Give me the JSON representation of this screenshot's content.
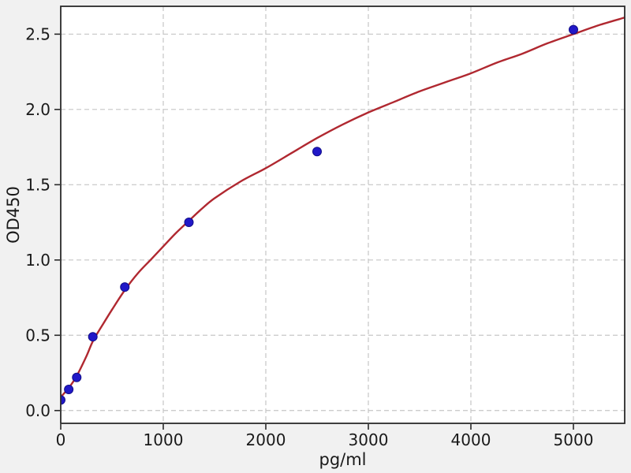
{
  "figure": {
    "background_color": "#f1f1f1",
    "plot_background_color": "#ffffff",
    "spine_color": "#2a2a2a",
    "grid_color": "#c6c6c6",
    "tick_color": "#2a2a2a",
    "label_color": "#1a1a1a"
  },
  "chart_data": {
    "type": "scatter",
    "title": "",
    "xlabel": "pg/ml",
    "ylabel": "OD450",
    "xlim": [
      0,
      5500
    ],
    "ylim": [
      -0.085,
      2.685
    ],
    "grid": true,
    "grid_style": "dashed",
    "legend_position": "none",
    "x_ticks": [
      0,
      1000,
      2000,
      3000,
      4000,
      5000
    ],
    "x_tick_labels": [
      "0",
      "1000",
      "2000",
      "3000",
      "4000",
      "5000"
    ],
    "y_ticks": [
      0,
      0.5,
      1,
      1.5,
      2,
      2.5
    ],
    "y_tick_labels": [
      "0.0",
      "0.5",
      "1.0",
      "1.5",
      "2.0",
      "2.5"
    ],
    "series": [
      {
        "name": "standard-points",
        "kind": "scatter",
        "marker": "circle",
        "marker_color": "#2118c8",
        "marker_edge_color": "#120e8a",
        "x": [
          0,
          78,
          156,
          313,
          625,
          1250,
          2500,
          5000
        ],
        "y": [
          0.07,
          0.14,
          0.22,
          0.49,
          0.82,
          1.25,
          1.72,
          2.53
        ]
      },
      {
        "name": "fit-curve",
        "kind": "line",
        "line_color": "#b02830",
        "x": [
          0,
          78,
          156,
          250,
          313,
          400,
          500,
          625,
          750,
          875,
          1000,
          1125,
          1250,
          1375,
          1500,
          1750,
          2000,
          2250,
          2500,
          2750,
          3000,
          3250,
          3500,
          3750,
          4000,
          4250,
          4500,
          4750,
          5000,
          5250,
          5500
        ],
        "y": [
          0.09,
          0.15,
          0.23,
          0.36,
          0.46,
          0.56,
          0.67,
          0.8,
          0.91,
          1.0,
          1.09,
          1.18,
          1.26,
          1.34,
          1.41,
          1.52,
          1.61,
          1.71,
          1.81,
          1.9,
          1.98,
          2.05,
          2.12,
          2.18,
          2.24,
          2.31,
          2.37,
          2.44,
          2.5,
          2.56,
          2.61
        ]
      }
    ]
  }
}
